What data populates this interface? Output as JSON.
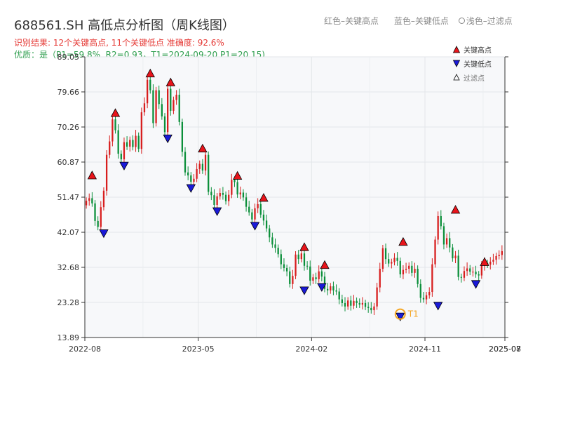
{
  "header": {
    "title": "688561.SH 高低点分析图（周K线图）",
    "result_text": "识别结果: 12个关键高点, 11个关键低点  准确度: 92.6%",
    "quality_text": "优质：是（P1=59.8%, R2=0.93，T1=2024-09-20 P1=20.15)"
  },
  "top_legend": {
    "red": "红色–关键高点",
    "blue": "蓝色–关键低点",
    "light": "浅色–过滤点"
  },
  "chart_data": {
    "type": "candlestick",
    "ylim": [
      13.89,
      89.05
    ],
    "y_ticks": [
      13.89,
      23.28,
      32.68,
      42.07,
      51.47,
      60.87,
      70.26,
      79.66,
      89.05
    ],
    "x_ticks": [
      "2022-08",
      "2023-05",
      "2024-02",
      "2024-11",
      "2025-07",
      "2025-08"
    ],
    "legend": {
      "high": "关键高点",
      "low": "关键低点",
      "filtered": "过滤点",
      "placement": "top-right"
    },
    "colors": {
      "up": "#d81e1e",
      "down": "#0b8f3a",
      "high_marker": "#e8141b",
      "low_marker": "#1a1ad8",
      "t1": "#f5a623"
    },
    "weekly_close": [
      50.5,
      51.2,
      49.8,
      45.1,
      43.5,
      48.8,
      53.2,
      62.8,
      66.4,
      72.3,
      69.4,
      63.1,
      61.6,
      66.2,
      65.0,
      66.8,
      64.9,
      67.9,
      64.4,
      74.2,
      76.6,
      82.9,
      80.1,
      71.3,
      80.1,
      76.4,
      73.1,
      68.9,
      80.5,
      74.6,
      77.5,
      78.9,
      71.6,
      63.6,
      58.1,
      57.3,
      55.6,
      56.4,
      59.0,
      60.4,
      58.6,
      62.8,
      52.9,
      52.0,
      49.4,
      51.7,
      52.6,
      52.1,
      50.4,
      52.1,
      56.1,
      55.5,
      52.2,
      52.7,
      51.4,
      48.9,
      47.4,
      45.5,
      48.5,
      49.6,
      46.8,
      45.2,
      43.1,
      40.7,
      38.8,
      37.9,
      36.2,
      33.5,
      32.5,
      31.6,
      28.2,
      30.4,
      36.1,
      34.9,
      36.4,
      33.1,
      32.9,
      29.1,
      30.0,
      29.5,
      31.6,
      30.2,
      26.9,
      26.5,
      27.6,
      26.5,
      26.2,
      24.1,
      23.1,
      22.2,
      23.8,
      22.4,
      23.7,
      23.1,
      22.7,
      23.1,
      22.1,
      21.8,
      21.2,
      22.2,
      27.3,
      32.3,
      37.8,
      34.9,
      33.7,
      34.1,
      35.2,
      34.4,
      30.8,
      32.0,
      32.3,
      33.1,
      31.2,
      32.3,
      28.2,
      24.5,
      24.1,
      25.2,
      26.1,
      33.5,
      40.1,
      46.4,
      43.7,
      38.8,
      40.5,
      38.0,
      35.1,
      35.8,
      30.1,
      29.9,
      31.7,
      32.4,
      31.5,
      31.5,
      30.8,
      30.5,
      33.1,
      33.8,
      33.4,
      34.2,
      34.7,
      35.7,
      36.0,
      37.0
    ],
    "key_highs": [
      {
        "week": 2,
        "price": 55.6
      },
      {
        "week": 10,
        "price": 72.3
      },
      {
        "week": 22,
        "price": 82.9
      },
      {
        "week": 29,
        "price": 80.5
      },
      {
        "week": 40,
        "price": 62.8
      },
      {
        "week": 52,
        "price": 55.5
      },
      {
        "week": 61,
        "price": 49.6
      },
      {
        "week": 75,
        "price": 36.4
      },
      {
        "week": 82,
        "price": 31.6
      },
      {
        "week": 109,
        "price": 37.8
      },
      {
        "week": 127,
        "price": 46.4
      },
      {
        "week": 137,
        "price": 32.4
      }
    ],
    "key_lows": [
      {
        "week": 6,
        "price": 43.5
      },
      {
        "week": 13,
        "price": 61.6
      },
      {
        "week": 28,
        "price": 68.9
      },
      {
        "week": 36,
        "price": 55.6
      },
      {
        "week": 45,
        "price": 49.4
      },
      {
        "week": 58,
        "price": 45.5
      },
      {
        "week": 75,
        "price": 28.2
      },
      {
        "week": 81,
        "price": 29.1
      },
      {
        "week": 108,
        "price": 21.2
      },
      {
        "week": 121,
        "price": 24.1
      },
      {
        "week": 134,
        "price": 29.9
      }
    ],
    "t1": {
      "label": "T1",
      "week": 108,
      "price": 20.15
    }
  }
}
